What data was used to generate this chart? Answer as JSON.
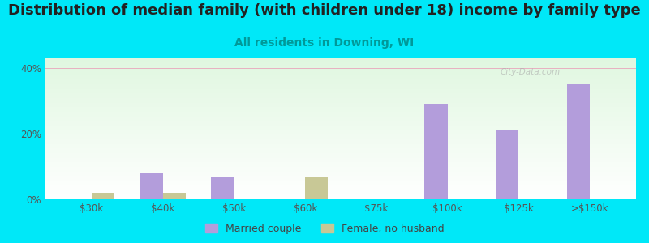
{
  "title": "Distribution of median family (with children under 18) income by family type",
  "subtitle": "All residents in Downing, WI",
  "categories": [
    "$30k",
    "$40k",
    "$50k",
    "$60k",
    "$75k",
    "$100k",
    "$125k",
    ">$150k"
  ],
  "married_couple": [
    0,
    8,
    7,
    0,
    0,
    29,
    21,
    35
  ],
  "female_no_husband": [
    2,
    2,
    0,
    7,
    0,
    0,
    0,
    0
  ],
  "bar_width": 0.32,
  "married_color": "#b39ddb",
  "female_color": "#c8c896",
  "background_outer": "#00e8f8",
  "title_fontsize": 13,
  "subtitle_fontsize": 10,
  "subtitle_color": "#009999",
  "ylabel_ticks": [
    0,
    20,
    40
  ],
  "ylim": [
    0,
    43
  ],
  "grid_color": "#e8b0c0",
  "watermark": "City-Data.com",
  "tick_color": "#555555",
  "tick_fontsize": 8.5
}
